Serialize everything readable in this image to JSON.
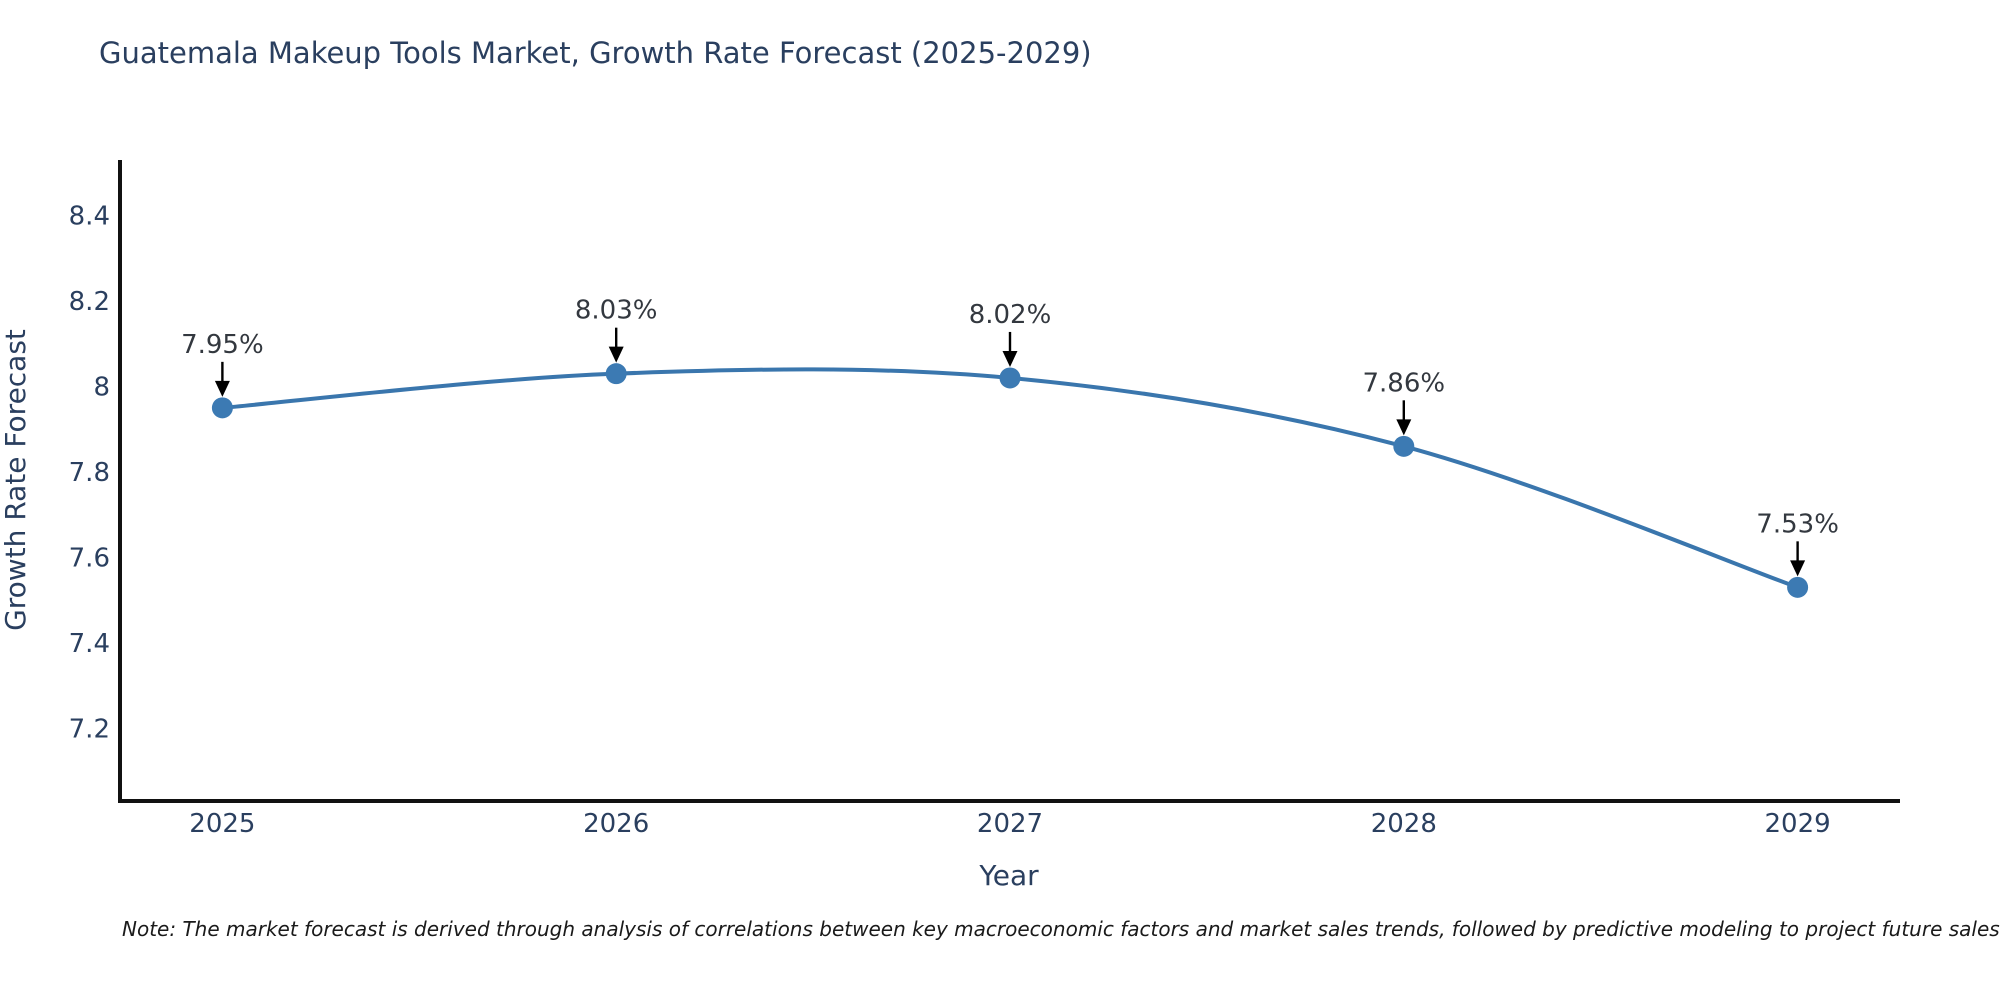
{
  "page": {
    "background": "#ffffff"
  },
  "title": "Guatemala Makeup Tools Market, Growth Rate Forecast (2025-2029)",
  "note": "Note: The market forecast is derived through analysis of correlations between key macroeconomic factors and market sales trends, followed by predictive modeling to project future sales",
  "colors": {
    "line": "#3a76ad",
    "marker": "#3c7ab3",
    "axis": "#111111",
    "tick_text": "#2a3f5f",
    "annotation_text": "#33383f",
    "arrow": "#000000",
    "title_text": "#2a3f5f",
    "note_text": "#1a1a1a"
  },
  "chart_data": {
    "type": "line",
    "title": "Guatemala Makeup Tools Market, Growth Rate Forecast (2025-2029)",
    "xlabel": "Year",
    "ylabel": "Growth Rate Forecast",
    "x": [
      2025,
      2026,
      2027,
      2028,
      2029
    ],
    "series": [
      {
        "name": "Growth Rate Forecast",
        "values": [
          7.95,
          8.03,
          8.02,
          7.86,
          7.53
        ]
      }
    ],
    "point_labels": [
      "7.95%",
      "8.03%",
      "8.02%",
      "7.86%",
      "7.53%"
    ],
    "xticks": [
      "2025",
      "2026",
      "2027",
      "2028",
      "2029"
    ],
    "yticks": [
      7.2,
      7.4,
      7.6,
      7.8,
      8,
      8.2,
      8.4
    ],
    "ytick_labels": [
      "7.2",
      "7.4",
      "7.6",
      "7.8",
      "8",
      "8.2",
      "8.4"
    ],
    "xlim": [
      2024.74,
      2029.26
    ],
    "ylim": [
      7.03,
      8.53
    ],
    "grid": false,
    "legend": "none",
    "line_shape": "spline",
    "unit": "%"
  }
}
